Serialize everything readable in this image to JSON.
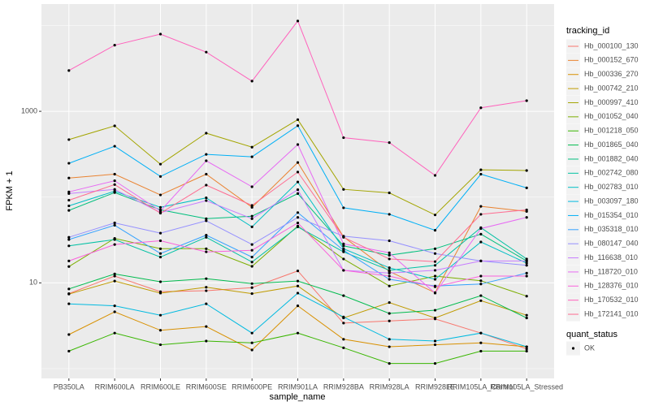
{
  "chart_data": {
    "type": "line",
    "x_label": "sample_name",
    "y_label": "FPKM + 1",
    "log_y": true,
    "grid": true,
    "categories": [
      "PB350LA",
      "RRIM600LA",
      "RRIM600LE",
      "RRIM600SE",
      "RRIM600PE",
      "RRIM901LA",
      "RRIM928BA",
      "RRIM928LA",
      "RRIM928LE",
      "RRIM105LA_Control",
      "RRIM105LA_Stressed"
    ],
    "ylim": [
      0.77,
      17800
    ],
    "yticks": [
      10,
      1000
    ],
    "minor_yticks": [
      1,
      100,
      10000
    ],
    "legend_title": "tracking_id",
    "shape_legend": {
      "title": "quant_status",
      "labels": [
        "OK"
      ]
    },
    "series": [
      {
        "name": "Hb_000100_130",
        "color": "#F8766D",
        "values": [
          7.5,
          12,
          7.9,
          8.1,
          8.8,
          13.8,
          3.4,
          3.6,
          3.8,
          2.6,
          1.7
        ]
      },
      {
        "name": "Hb_000152_670",
        "color": "#EA8331",
        "values": [
          167,
          185,
          106,
          185,
          76,
          253,
          34.5,
          13.6,
          7.7,
          78,
          68
        ]
      },
      {
        "name": "Hb_000336_270",
        "color": "#D89000",
        "values": [
          2.5,
          4.6,
          2.8,
          3.1,
          1.65,
          5.4,
          2.2,
          1.8,
          1.9,
          2.0,
          1.8
        ]
      },
      {
        "name": "Hb_000742_210",
        "color": "#C09B00",
        "values": [
          7.4,
          10.5,
          7.6,
          8.9,
          7.5,
          9.2,
          3.9,
          5.9,
          3.9,
          6.2,
          4.2
        ]
      },
      {
        "name": "Hb_000997_410",
        "color": "#A3A500",
        "values": [
          468,
          677,
          242,
          556,
          382,
          800,
          123,
          112,
          62,
          208,
          204
        ]
      },
      {
        "name": "Hb_001052_040",
        "color": "#7CAE00",
        "values": [
          15.5,
          33,
          25,
          25,
          15.6,
          46,
          19,
          9.2,
          12,
          10.6,
          7
        ]
      },
      {
        "name": "Hb_001218_050",
        "color": "#39B600",
        "values": [
          1.6,
          2.6,
          1.9,
          2.1,
          2.0,
          2.6,
          1.75,
          1.15,
          1.15,
          1.6,
          1.6
        ]
      },
      {
        "name": "Hb_001865_040",
        "color": "#00BB4E",
        "values": [
          8.5,
          12.7,
          10.3,
          11.2,
          9.8,
          10.5,
          7.1,
          4.4,
          4.8,
          7.1,
          3.9
        ]
      },
      {
        "name": "Hb_001882_040",
        "color": "#00BF7D",
        "values": [
          70,
          113,
          71,
          56,
          60,
          110,
          27,
          21,
          25,
          37,
          18
        ]
      },
      {
        "name": "Hb_002742_080",
        "color": "#00C1A3",
        "values": [
          27,
          32,
          20,
          34,
          17.5,
          45,
          23,
          14,
          16,
          44,
          19
        ]
      },
      {
        "name": "Hb_002783_010",
        "color": "#00BFC4",
        "values": [
          79,
          117,
          76,
          98,
          45,
          150,
          25,
          15,
          11,
          30,
          17
        ]
      },
      {
        "name": "Hb_003097_180",
        "color": "#00BAE0",
        "values": [
          5.7,
          5.4,
          4.2,
          5.7,
          2.6,
          7.6,
          4.0,
          2.2,
          2.1,
          2.6,
          1.8
        ]
      },
      {
        "name": "Hb_015354_010",
        "color": "#00B0F6",
        "values": [
          248,
          392,
          174,
          315,
          295,
          680,
          75,
          63,
          41,
          185,
          128
        ]
      },
      {
        "name": "Hb_035318_010",
        "color": "#35A2FF",
        "values": [
          32,
          47,
          22,
          36,
          20,
          66,
          24,
          11,
          9.2,
          9.7,
          13
        ]
      },
      {
        "name": "Hb_080147_040",
        "color": "#9590FF",
        "values": [
          34,
          50,
          38,
          53,
          28,
          58,
          35,
          31,
          22,
          18,
          16
        ]
      },
      {
        "name": "Hb_116638_010",
        "color": "#C77CFF",
        "values": [
          110,
          123,
          66,
          91,
          56,
          122,
          14,
          13,
          14,
          18,
          18
        ]
      },
      {
        "name": "Hb_118720_010",
        "color": "#E76BF3",
        "values": [
          115,
          155,
          69,
          265,
          132,
          410,
          28.5,
          22.4,
          7.6,
          43,
          58
        ]
      },
      {
        "name": "Hb_128376_010",
        "color": "#FA62DB",
        "values": [
          18,
          28,
          31,
          23,
          24,
          50,
          14,
          12,
          9,
          12,
          12
        ]
      },
      {
        "name": "Hb_170532_010",
        "color": "#FF62BC",
        "values": [
          2990,
          5900,
          7950,
          4900,
          2250,
          11300,
          493,
          432,
          179,
          1100,
          1330
        ]
      },
      {
        "name": "Hb_172141_010",
        "color": "#FF6C91",
        "values": [
          92,
          140,
          65,
          138,
          80,
          196,
          34,
          19,
          17.7,
          63,
          71
        ]
      }
    ]
  }
}
